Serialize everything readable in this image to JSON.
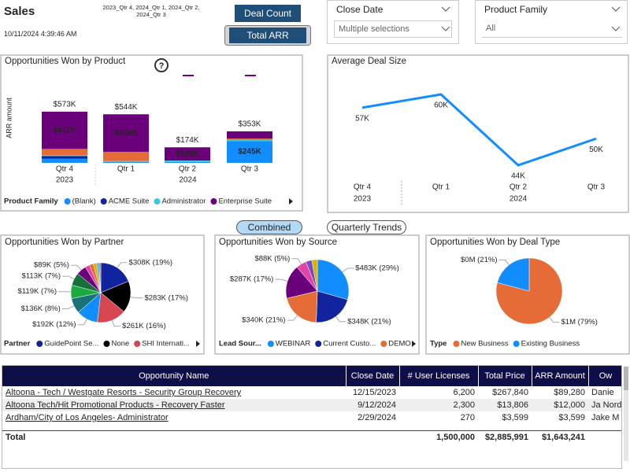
{
  "header": {
    "title": "Sales",
    "timestamp": "10/11/2024 4:39:46 AM",
    "filter_text": "2023_Qtr 4, 2024_Qtr 1, 2024_Qtr 2, 2024_Qtr 3",
    "help_icon": "?"
  },
  "buttons": {
    "deal_count": "Deal Count",
    "total_arr": "Total ARR",
    "combined": "Combined",
    "quarterly_trends": "Quarterly Trends"
  },
  "slicers": [
    {
      "label": "Close Date",
      "value": "Multiple selections"
    },
    {
      "label": "Product Family",
      "value": "All"
    }
  ],
  "chart_data": [
    {
      "type": "bar",
      "stacked": true,
      "title": "Opportunities Won by Product",
      "y_label": "ARR amount",
      "categories": [
        "Qtr 4",
        "Qtr 1",
        "Qtr 2",
        "Qtr 3"
      ],
      "years": [
        "2023",
        "2024",
        "2024",
        "2024"
      ],
      "legend_title": "Product Family",
      "series": [
        {
          "name": "(Blank)",
          "color": "#118DFF",
          "values": [
            46000,
            10000,
            10000,
            245000
          ],
          "value_labels": [
            null,
            null,
            null,
            "$245K"
          ]
        },
        {
          "name": "ACME Suite",
          "color": "#12239E",
          "values": [
            30000,
            0,
            0,
            0
          ]
        },
        {
          "name": "Administrator",
          "color": "#41C7D3",
          "values": [
            10000,
            10000,
            16000,
            15000
          ]
        },
        {
          "color": "#E66C37",
          "values": [
            70000,
            104000,
            0,
            13000
          ]
        },
        {
          "name": "Enterprise Suite",
          "color": "#6B007B",
          "values": [
            417000,
            420000,
            148000,
            80000
          ],
          "value_labels": [
            "$417K",
            "$420K",
            "$148K",
            null
          ]
        }
      ],
      "totals": {
        "values": [
          573000,
          544000,
          174000,
          353000
        ],
        "value_labels": [
          "$573K",
          "$544K",
          "$174K",
          "$353K"
        ]
      }
    },
    {
      "type": "line",
      "title": "Average Deal Size",
      "categories": [
        "Qtr 4",
        "Qtr 1",
        "Qtr 2",
        "Qtr 3"
      ],
      "years": [
        "2023",
        "2024",
        "2024",
        "2024"
      ],
      "values": [
        57000,
        60000,
        44000,
        50000
      ],
      "value_labels": [
        "57K",
        "60K",
        "44K",
        "50K"
      ],
      "color": "#118DFF"
    },
    {
      "type": "pie",
      "title": "Opportunities Won by Partner",
      "legend_title": "Partner",
      "categories": [
        "GuidePoint Se...",
        "None",
        "SHI Internati...",
        null,
        null,
        null,
        null,
        null,
        null,
        null,
        null,
        null,
        null
      ],
      "values": [
        308000,
        283000,
        261000,
        192000,
        136000,
        119000,
        113000,
        89000,
        40000,
        35000,
        30000,
        20000,
        17000
      ],
      "value_labels": [
        "$308K (19%)",
        "$283K (17%)",
        "$261K (16%)",
        "$192K (12%)",
        "$136K (8%)",
        "$119K (7%)",
        "$113K (7%)",
        "$89K (5%)",
        null,
        null,
        null,
        null,
        null
      ],
      "colors": [
        "#12239E",
        "#000000",
        "#D64550",
        "#118DFF",
        "#197278",
        "#1AAB40",
        "#15703A",
        "#6B007B",
        "#E044A7",
        "#E66C37",
        "#D9B300",
        "#41A4FF",
        "#8A8A8A"
      ]
    },
    {
      "type": "pie",
      "title": "Opportunities Won by Source",
      "legend_title": "Lead Sour...",
      "categories": [
        "WEBINAR",
        "Current Custo...",
        "DEMO",
        null,
        null,
        null,
        null
      ],
      "values": [
        483000,
        348000,
        340000,
        287000,
        88000,
        50000,
        47000
      ],
      "value_labels": [
        "$483K (29%)",
        "$348K (21%)",
        "$340K (21%)",
        "$287K (17%)",
        "$88K (5%)",
        null,
        null
      ],
      "colors": [
        "#118DFF",
        "#12239E",
        "#E66C37",
        "#6B007B",
        "#E044A7",
        "#744EC2",
        "#D9B300"
      ]
    },
    {
      "type": "pie",
      "title": "Opportunities Won by Deal Type",
      "legend_title": "Type",
      "categories": [
        "New Business",
        "Existing Business"
      ],
      "values": [
        1300000,
        343241
      ],
      "value_labels": [
        "$1M (79%)",
        "$0M (21%)"
      ],
      "colors": [
        "#E66C37",
        "#118DFF"
      ]
    }
  ],
  "table": {
    "columns": [
      "Opportunity Name",
      "Close Date",
      "# User Licenses",
      "Total Price",
      "ARR Amount",
      "Ow"
    ],
    "rows": [
      [
        "Altoona - Tech / Westgate Resorts - Security Group Recovery",
        "12/15/2023",
        "6,200",
        "$267,840",
        "$89,280",
        "Danie"
      ],
      [
        "Altoona Tech/Hit Promotional Products - Recovery Faster",
        "9/12/2024",
        "2,300",
        "$13,806",
        "$12,000",
        "Ja Nord"
      ],
      [
        "Ardham/City of Los Angeles- Administrator",
        "2/29/2024",
        "270",
        "$3,599",
        "$3,599",
        "Jake M"
      ]
    ],
    "total": [
      "Total",
      "",
      "1,500,000",
      "$2,885,991",
      "$1,643,241",
      ""
    ]
  }
}
